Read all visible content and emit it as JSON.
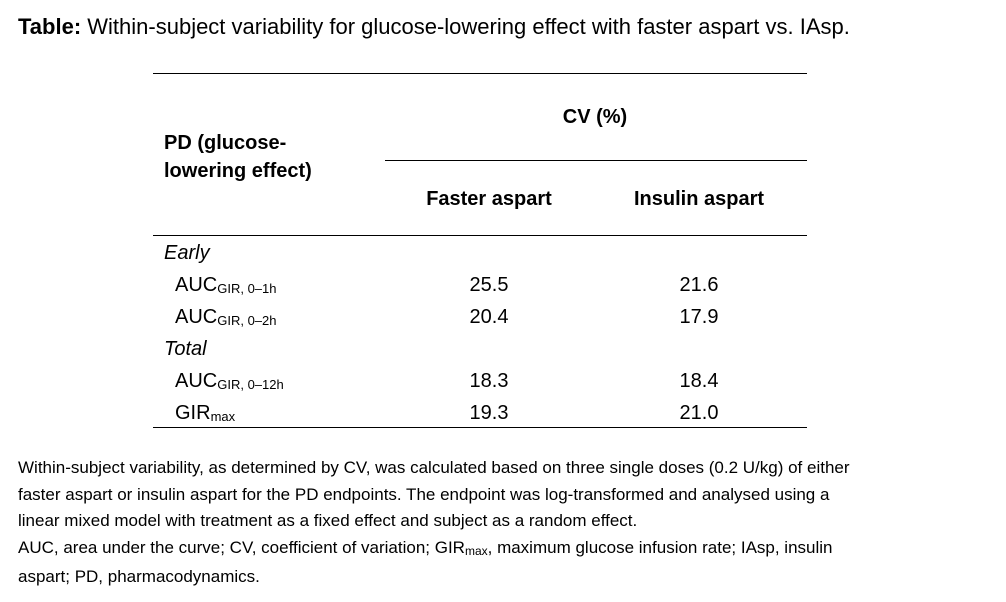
{
  "caption": {
    "label": "Table:",
    "text": " Within-subject variability for glucose-lowering effect with faster aspart vs. IAsp."
  },
  "table": {
    "header": {
      "row_label_line1": "PD (glucose-",
      "row_label_line2": "lowering effect)",
      "group_header": "CV (%)",
      "col1": "Faster aspart",
      "col2": "Insulin aspart"
    },
    "sections": [
      {
        "name": "Early",
        "rows": [
          {
            "label_main": "AUC",
            "label_sub": "GIR, 0–1h",
            "faster": "25.5",
            "insulin": "21.6"
          },
          {
            "label_main": "AUC",
            "label_sub": "GIR, 0–2h",
            "faster": "20.4",
            "insulin": "17.9"
          }
        ]
      },
      {
        "name": "Total",
        "rows": [
          {
            "label_main": "AUC",
            "label_sub": "GIR, 0–12h",
            "faster": "18.3",
            "insulin": "18.4"
          },
          {
            "label_main": "GIR",
            "label_sub": "max",
            "faster": "19.3",
            "insulin": "21.0"
          }
        ]
      }
    ]
  },
  "footnote": {
    "line1": "Within-subject variability, as determined by CV, was calculated based on three single doses (0.2 U/kg) of either",
    "line2": "faster aspart or insulin aspart for the PD endpoints. The endpoint was log-transformed and analysed using a",
    "line3": "linear mixed model with treatment as a fixed effect and subject as a random effect.",
    "line4_a": "AUC, area under the curve; CV, coefficient of variation; GIR",
    "line4_sub": "max",
    "line4_b": ", maximum glucose infusion rate; IAsp, insulin",
    "line5": "aspart; PD, pharmacodynamics."
  }
}
